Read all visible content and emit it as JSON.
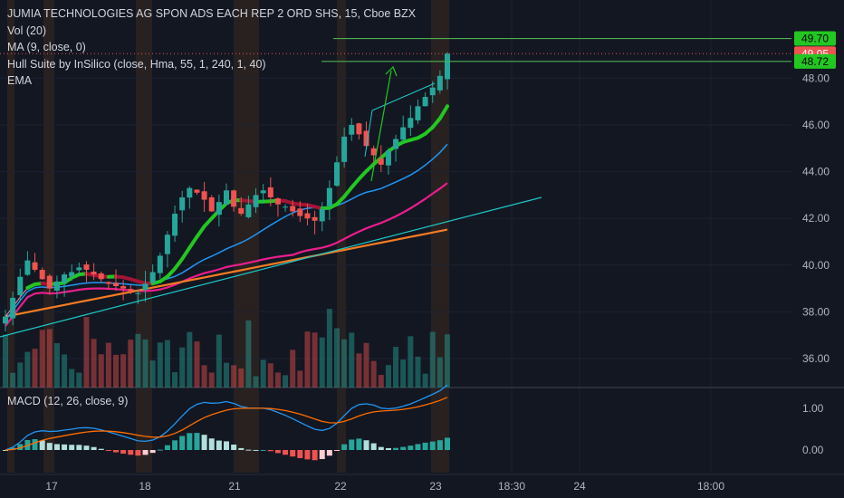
{
  "legend": {
    "title": "JUMIA TECHNOLOGIES AG SPON ADS EACH REP 2 ORD SHS, 15, Cboe BZX",
    "vol": "Vol (20)",
    "ma": "MA (9, close, 0)",
    "hull": "Hull Suite by InSilico (close, Hma, 55, 1, 240, 1, 40)",
    "ema": "EMA",
    "macd": "MACD (12, 26, close, 9)"
  },
  "colors": {
    "background": "#131722",
    "grid": "#1e2230",
    "text": "#b2b5be",
    "up": "#26a69a",
    "down": "#ef5350",
    "ma": "#f48fb1",
    "ema_magenta": "#e91e8c",
    "ema_orange": "#f57c22",
    "ema_cyan": "#2196f3",
    "trendline": "#1ec8c8",
    "hline": "#4caf50",
    "hull_green": "#22c722",
    "hull_red": "#a31535",
    "session": "#3a2a1f",
    "macd_line": "#2196f3",
    "signal_line": "#ff6d00"
  },
  "axis": {
    "price_ticks": [
      "48.00",
      "46.00",
      "44.00",
      "42.00",
      "40.00",
      "38.00",
      "36.00"
    ],
    "macd_ticks": [
      "1.00",
      "0.00"
    ],
    "time_ticks": [
      "17",
      "18",
      "21",
      "22",
      "23",
      "18:30",
      "24",
      "18:00"
    ]
  },
  "chart_data": [
    {
      "type": "candlestick",
      "title": "JUMIA TECHNOLOGIES AG SPON ADS EACH REP 2 ORD SHS, 15, Cboe BZX",
      "x_labels": [
        "17",
        "18",
        "21",
        "22",
        "23"
      ],
      "ylim": [
        35.2,
        50.5
      ],
      "y_ticks": [
        36,
        38,
        40,
        42,
        44,
        46,
        48
      ],
      "close": [
        37.8,
        38.6,
        39.5,
        40.2,
        39.8,
        39.4,
        39.0,
        39.3,
        39.6,
        39.7,
        39.9,
        39.8,
        39.6,
        39.4,
        39.2,
        39.1,
        39.0,
        38.9,
        38.8,
        39.2,
        39.7,
        40.4,
        41.3,
        42.2,
        42.9,
        43.3,
        43.1,
        42.8,
        42.3,
        42.7,
        43.2,
        42.5,
        42.2,
        42.6,
        43.0,
        43.2,
        42.9,
        42.6,
        42.5,
        42.3,
        42.1,
        42.0,
        41.9,
        42.4,
        43.3,
        44.4,
        45.5,
        46.0,
        45.6,
        45.1,
        44.7,
        44.3,
        44.9,
        45.4,
        45.9,
        46.3,
        46.8,
        47.2,
        47.6,
        48.1,
        49.05
      ],
      "levels": {
        "upper": 49.7,
        "last": 49.05,
        "lower": 48.72
      },
      "macd_ylim": [
        -0.6,
        1.6
      ],
      "macd_ticks": [
        0,
        1
      ]
    }
  ]
}
